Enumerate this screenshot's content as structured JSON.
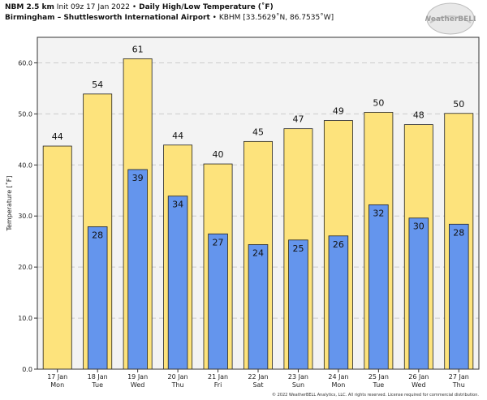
{
  "header": {
    "line1_model": "NBM 2.5 km",
    "line1_init": "Init 09z 17 Jan 2022",
    "line1_sep": "•",
    "line1_title": "Daily High/Low Temperature (˚F)",
    "line2_station": "Birmingham – Shuttlesworth International Airport",
    "line2_sep": "•",
    "line2_code": "KBHM [33.5629˚N, 86.7535˚W]"
  },
  "logo": {
    "text": "WeatherBELL",
    "color": "#9a9a9a"
  },
  "footer": {
    "text": "© 2022 WeatherBELL Analytics, LLC. All rights reserved. License required for commercial distribution."
  },
  "colors": {
    "high": "#fde37c",
    "low": "#6495ed",
    "plot_bg": "#f3f3f3",
    "grid": "#cccccc",
    "border": "#333333"
  },
  "chart_data": {
    "type": "bar",
    "title": "Daily High/Low Temperature (˚F)",
    "ylabel": "Temperature [˚F]",
    "xlabel": "",
    "ylim": [
      0,
      65
    ],
    "yticks": [
      "0.0",
      "10.0",
      "20.0",
      "30.0",
      "40.0",
      "50.0",
      "60.0"
    ],
    "grid": "horizontal dashed",
    "categories": [
      {
        "date": "17 Jan",
        "day": "Mon"
      },
      {
        "date": "18 Jan",
        "day": "Tue"
      },
      {
        "date": "19 Jan",
        "day": "Wed"
      },
      {
        "date": "20 Jan",
        "day": "Thu"
      },
      {
        "date": "21 Jan",
        "day": "Fri"
      },
      {
        "date": "22 Jan",
        "day": "Sat"
      },
      {
        "date": "23 Jan",
        "day": "Sun"
      },
      {
        "date": "24 Jan",
        "day": "Mon"
      },
      {
        "date": "25 Jan",
        "day": "Tue"
      },
      {
        "date": "26 Jan",
        "day": "Wed"
      },
      {
        "date": "27 Jan",
        "day": "Thu"
      }
    ],
    "series": [
      {
        "role": "high",
        "values": [
          43.7,
          53.9,
          60.8,
          43.9,
          40.2,
          44.6,
          47.1,
          48.7,
          50.3,
          47.9,
          50.1
        ],
        "labels": [
          "44",
          "54",
          "61",
          "44",
          "40",
          "45",
          "47",
          "49",
          "50",
          "48",
          "50"
        ]
      },
      {
        "role": "low",
        "values": [
          null,
          27.9,
          39.1,
          33.9,
          26.5,
          24.4,
          25.3,
          26.1,
          32.2,
          29.6,
          28.4
        ],
        "labels": [
          null,
          "28",
          "39",
          "34",
          "27",
          "24",
          "25",
          "26",
          "32",
          "30",
          "28"
        ]
      }
    ]
  }
}
